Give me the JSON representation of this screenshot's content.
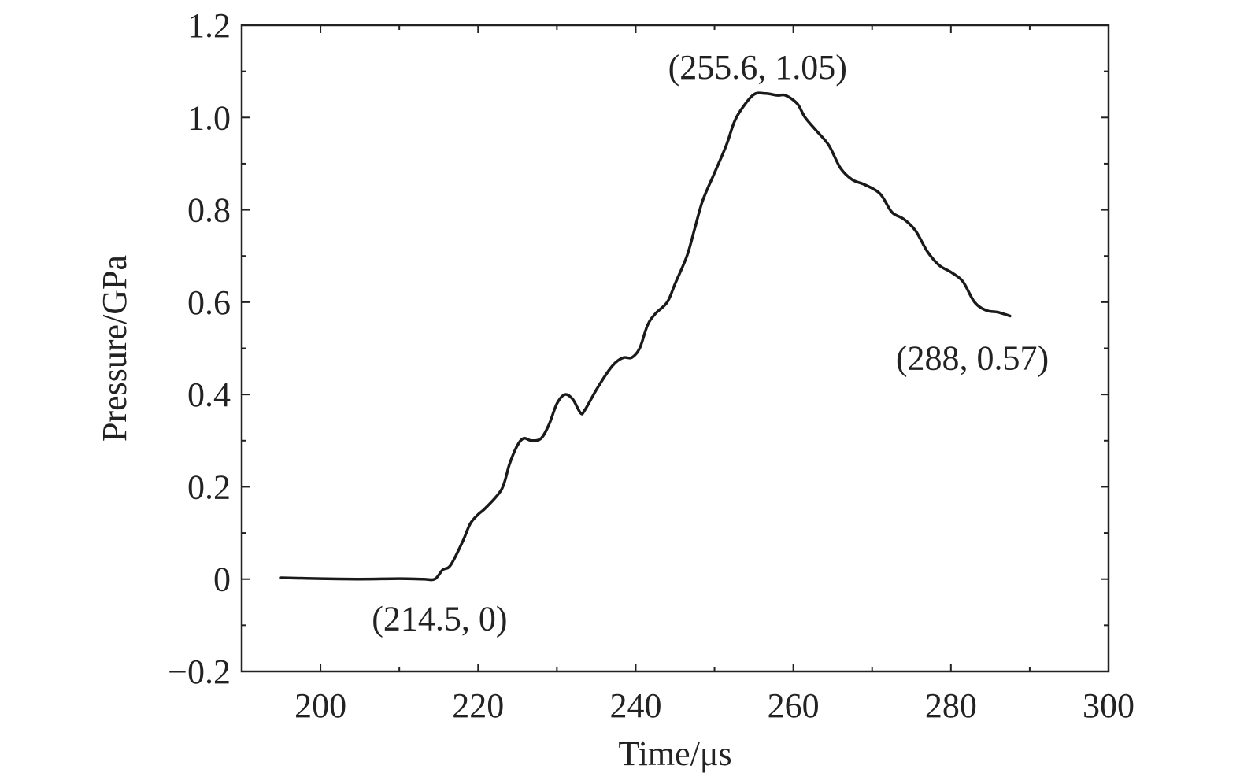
{
  "chart_data": {
    "type": "line",
    "title": "",
    "xlabel": "Time/μs",
    "ylabel": "Pressure/GPa",
    "xlim": [
      190,
      300
    ],
    "ylim": [
      -0.2,
      1.2
    ],
    "x_ticks": [
      200,
      220,
      240,
      260,
      280,
      300
    ],
    "x_tick_labels": [
      "200",
      "220",
      "240",
      "260",
      "280",
      "300"
    ],
    "y_ticks": [
      -0.2,
      0,
      0.2,
      0.4,
      0.6,
      0.8,
      1.0,
      1.2
    ],
    "y_tick_labels": [
      "−0.2",
      "0",
      "0.2",
      "0.4",
      "0.6",
      "0.8",
      "1.0",
      "1.2"
    ],
    "grid": false,
    "series": [
      {
        "color": "#1a1a1a",
        "points": [
          [
            195,
            0.003
          ],
          [
            200,
            0.001
          ],
          [
            205,
            0.0
          ],
          [
            210,
            0.001
          ],
          [
            213,
            0.0
          ],
          [
            214.5,
            0.0
          ],
          [
            215.5,
            0.02
          ],
          [
            216.5,
            0.03
          ],
          [
            218,
            0.08
          ],
          [
            219,
            0.12
          ],
          [
            220,
            0.14
          ],
          [
            221,
            0.155
          ],
          [
            223,
            0.195
          ],
          [
            224,
            0.25
          ],
          [
            225,
            0.29
          ],
          [
            225.8,
            0.305
          ],
          [
            226.8,
            0.3
          ],
          [
            228,
            0.305
          ],
          [
            229,
            0.335
          ],
          [
            230,
            0.38
          ],
          [
            231,
            0.4
          ],
          [
            232,
            0.39
          ],
          [
            233,
            0.36
          ],
          [
            233.5,
            0.365
          ],
          [
            235,
            0.41
          ],
          [
            236.5,
            0.45
          ],
          [
            237.5,
            0.47
          ],
          [
            238.5,
            0.48
          ],
          [
            239.5,
            0.48
          ],
          [
            240.5,
            0.5
          ],
          [
            241.5,
            0.55
          ],
          [
            242.5,
            0.575
          ],
          [
            244,
            0.6
          ],
          [
            245,
            0.64
          ],
          [
            246.5,
            0.7
          ],
          [
            247.5,
            0.76
          ],
          [
            248.5,
            0.82
          ],
          [
            250,
            0.88
          ],
          [
            251.5,
            0.94
          ],
          [
            252.5,
            0.99
          ],
          [
            253.5,
            1.02
          ],
          [
            255,
            1.05
          ],
          [
            256.5,
            1.052
          ],
          [
            258,
            1.048
          ],
          [
            259,
            1.048
          ],
          [
            260.5,
            1.03
          ],
          [
            261.5,
            1.0
          ],
          [
            263,
            0.97
          ],
          [
            264.5,
            0.94
          ],
          [
            266,
            0.89
          ],
          [
            267.5,
            0.865
          ],
          [
            269,
            0.855
          ],
          [
            271,
            0.835
          ],
          [
            272.5,
            0.795
          ],
          [
            274,
            0.78
          ],
          [
            275.5,
            0.755
          ],
          [
            277,
            0.71
          ],
          [
            278.5,
            0.68
          ],
          [
            280,
            0.665
          ],
          [
            281.5,
            0.645
          ],
          [
            283,
            0.6
          ],
          [
            284.5,
            0.582
          ],
          [
            286,
            0.578
          ],
          [
            287.5,
            0.57
          ]
        ]
      }
    ],
    "annotations": [
      {
        "text": "(255.6, 1.05)",
        "x": 255.6,
        "y": 1.05
      },
      {
        "text": "(214.5, 0)",
        "x": 214.5,
        "y": 0
      },
      {
        "text": "(288, 0.57)",
        "x": 288,
        "y": 0.57
      }
    ]
  }
}
